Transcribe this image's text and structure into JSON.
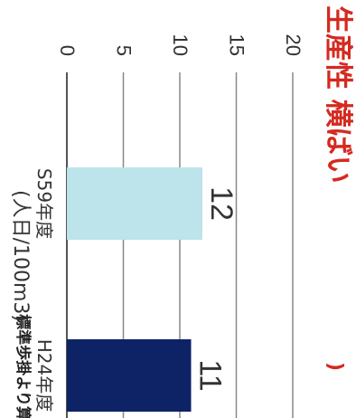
{
  "chart_data": {
    "type": "bar",
    "orientation": "rotated 90 degrees clockwise",
    "title": "生産性 横ばい",
    "title_color": "#d42a20",
    "ylabel": "(人日/100m3)",
    "ylim": [
      0,
      20
    ],
    "yticks": [
      0,
      5,
      10,
      15,
      20
    ],
    "grid": true,
    "categories": [
      "S59年度",
      "H24年度"
    ],
    "category_notes": [
      "",
      "標準歩掛より算出"
    ],
    "values": [
      12,
      11
    ],
    "colors": [
      "#bde3eb",
      "#0d2366"
    ]
  }
}
